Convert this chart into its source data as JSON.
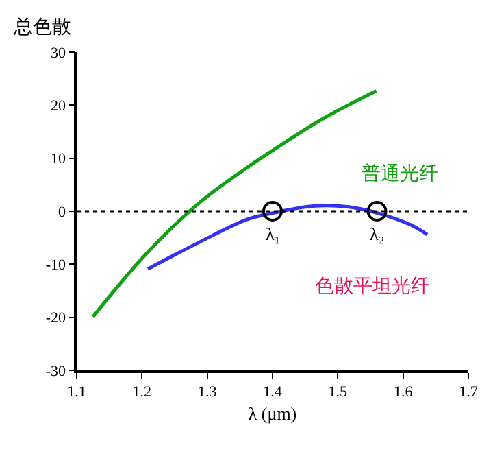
{
  "chart_data": {
    "type": "line",
    "ylabel": "总色散",
    "xlabel": "λ (μm)",
    "xlim": [
      1.1,
      1.7
    ],
    "xticks": [
      1.1,
      1.2,
      1.3,
      1.4,
      1.5,
      1.6,
      1.7
    ],
    "ylim": [
      -30,
      30
    ],
    "yticks": [
      -30,
      -20,
      -10,
      0,
      10,
      20,
      30
    ],
    "legend": false,
    "marker": "none",
    "line_style": "solid",
    "series": [
      {
        "name": "普通光纤",
        "color": "#11a011",
        "x": [
          1.125,
          1.203,
          1.287,
          1.356,
          1.412,
          1.475,
          1.559
        ],
        "values": [
          -19.9,
          -8.5,
          1.5,
          7.8,
          12.4,
          17.3,
          22.7
        ]
      },
      {
        "name": "色散平坦光纤",
        "color": "#3333ee",
        "x": [
          1.209,
          1.287,
          1.36,
          1.402,
          1.465,
          1.517,
          1.565,
          1.612,
          1.637
        ],
        "values": [
          -10.9,
          -5.9,
          -1.6,
          -0.3,
          1.0,
          0.8,
          -0.5,
          -2.6,
          -4.4
        ]
      },
      {
        "type": "scatter",
        "marker": "circle",
        "color": "#000000",
        "x": [
          1.4,
          1.56
        ],
        "values": [
          0,
          0
        ]
      }
    ],
    "ref_lines": [
      {
        "axis": "y",
        "value": 0,
        "color": "#000000",
        "line_style": "dotted"
      }
    ],
    "annotations": [
      {
        "text": "λ₁",
        "x": 1.4,
        "y": 0
      },
      {
        "text": "λ₂",
        "x": 1.56,
        "y": 0
      }
    ]
  }
}
